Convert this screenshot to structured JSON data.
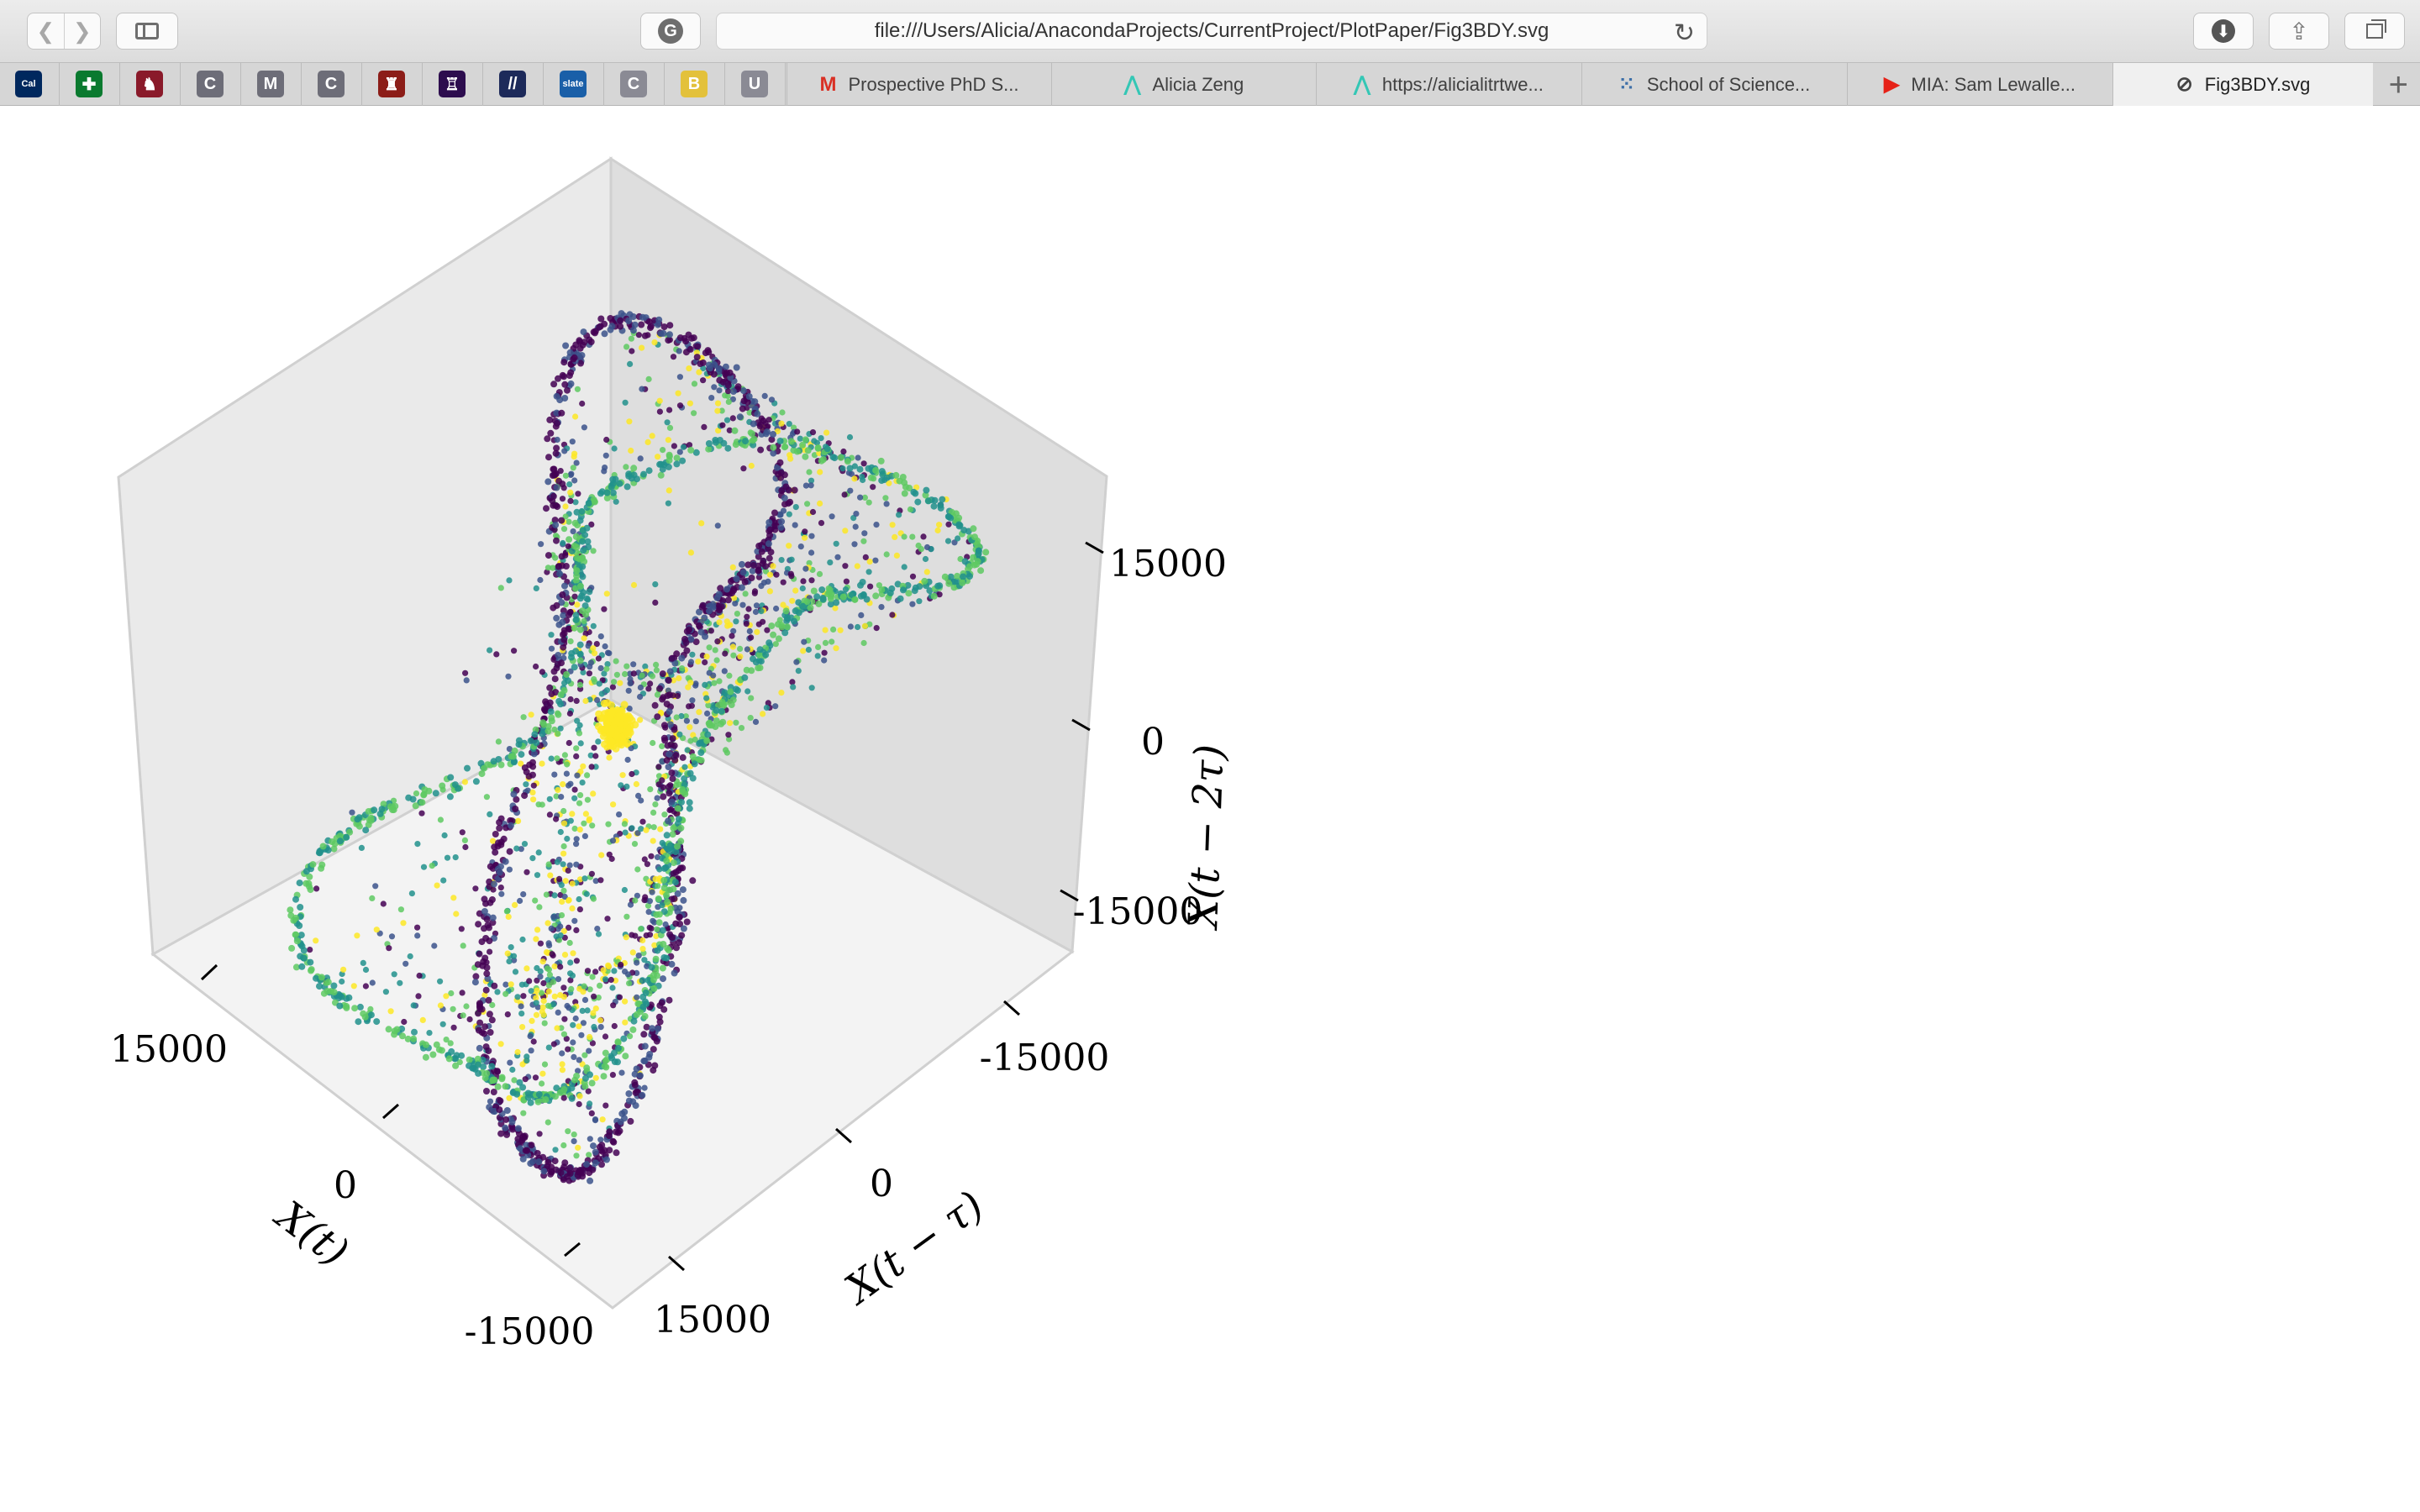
{
  "browser": {
    "url": "file:///Users/Alicia/AnacondaProjects/CurrentProject/PlotPaper/Fig3BDY.svg",
    "nav_back_icon": "chevron-left-icon",
    "nav_forward_icon": "chevron-right-icon",
    "reader_glyph": "G",
    "reload_glyph": "↻",
    "download_glyph": "⬇",
    "share_glyph": "⇪",
    "new_tab_glyph": "+"
  },
  "favorites": [
    {
      "icon": "cal-icon",
      "text": "Cal",
      "color": "#00285e"
    },
    {
      "icon": "cross-icon",
      "text": "✚",
      "color": "#0a7a2f"
    },
    {
      "icon": "griffin-icon",
      "text": "♞",
      "color": "#8a1a2a"
    },
    {
      "icon": "c-icon",
      "text": "C",
      "color": "#6d6d78"
    },
    {
      "icon": "m-icon",
      "text": "M",
      "color": "#6d6d78"
    },
    {
      "icon": "c-icon",
      "text": "C",
      "color": "#6d6d78"
    },
    {
      "icon": "crest-icon",
      "text": "♜",
      "color": "#8c1d18"
    },
    {
      "icon": "tower-icon",
      "text": "♖",
      "color": "#2d0d4e"
    },
    {
      "icon": "stripes-icon",
      "text": "//",
      "color": "#1d2a5a"
    },
    {
      "icon": "slate-icon",
      "text": "slate",
      "color": "#1a5fa8"
    },
    {
      "icon": "c-icon",
      "text": "C",
      "color": "#8a8a94"
    },
    {
      "icon": "db-icon",
      "text": "B",
      "color": "#e3c13b"
    },
    {
      "icon": "u-icon",
      "text": "U",
      "color": "#8a8a94"
    }
  ],
  "tabs": [
    {
      "icon": "gmail-icon",
      "glyph": "M",
      "glyph_color": "#d93025",
      "title": "Prospective PhD S..."
    },
    {
      "icon": "alicia-icon",
      "glyph": "⋀",
      "glyph_color": "#34c7b5",
      "title": "Alicia Zeng"
    },
    {
      "icon": "alicia-icon",
      "glyph": "⋀",
      "glyph_color": "#34c7b5",
      "title": "https://alicialitrtwe..."
    },
    {
      "icon": "school-icon",
      "glyph": "⁙",
      "glyph_color": "#3d6fa8",
      "title": "School of Science..."
    },
    {
      "icon": "youtube-icon",
      "glyph": "▶",
      "glyph_color": "#e62117",
      "title": "MIA: Sam Lewalle..."
    },
    {
      "icon": "compass-icon",
      "glyph": "⊘",
      "glyph_color": "#444444",
      "title": "Fig3BDY.svg",
      "active": true
    }
  ],
  "chart_data": {
    "type": "scatter",
    "projection": "3d",
    "colormap": "viridis",
    "colors": [
      "#440154",
      "#3b528b",
      "#21918c",
      "#5ec962",
      "#fde725"
    ],
    "xlabel": "$X(t)$",
    "ylabel": "$X(t-\\tau)$",
    "zlabel": "$X(t-2\\tau)$",
    "xlim": [
      -20000,
      20000
    ],
    "ylim": [
      -20000,
      20000
    ],
    "zlim": [
      -20000,
      20000
    ],
    "x_ticks": [
      "15000",
      "0",
      "-15000"
    ],
    "y_ticks": [
      "-15000",
      "0",
      "15000"
    ],
    "z_ticks": [
      "15000",
      "0",
      "-15000"
    ],
    "grid": false,
    "description": "",
    "series": [
      {
        "role": "outer-ribbon",
        "color_index": 0,
        "points": 900
      },
      {
        "role": "inner-ribbon",
        "color_index": 2,
        "points": 900
      },
      {
        "role": "scattered",
        "color_index": 3,
        "points": 1600
      },
      {
        "role": "center-cluster",
        "color_index": 4,
        "points": 160
      }
    ]
  }
}
